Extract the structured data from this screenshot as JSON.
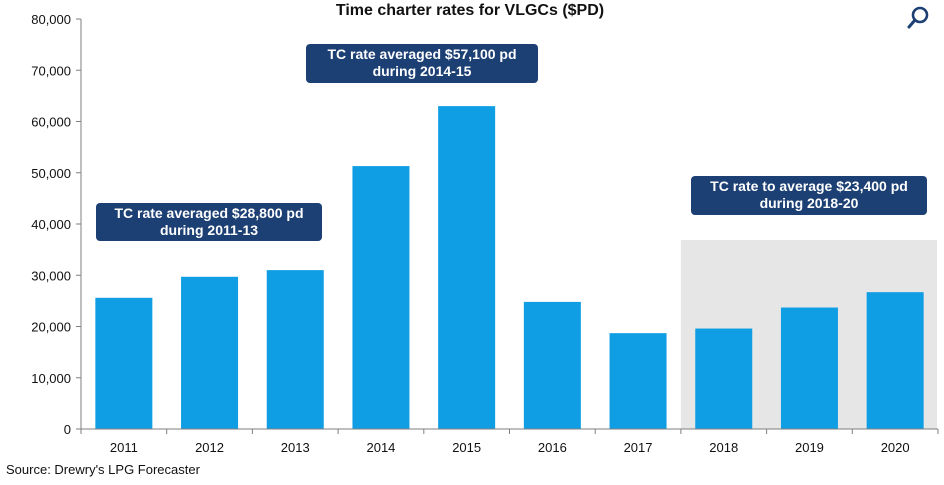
{
  "chart_data": {
    "type": "bar",
    "title": "Time charter rates for VLGCs ($PD)",
    "categories": [
      "2011",
      "2012",
      "2013",
      "2014",
      "2015",
      "2016",
      "2017",
      "2018",
      "2019",
      "2020"
    ],
    "values": [
      25600,
      29700,
      31000,
      51300,
      63000,
      24800,
      18700,
      19600,
      23700,
      26700
    ],
    "ylim": [
      0,
      80000
    ],
    "yticks": [
      "0",
      "10,000",
      "20,000",
      "30,000",
      "40,000",
      "50,000",
      "60,000",
      "70,000",
      "80,000"
    ],
    "grid": false,
    "bar_color": "#0f9de3",
    "forecast_shading": {
      "from": "2018",
      "to": "2020",
      "color": "#e6e6e6"
    },
    "annotations": [
      {
        "line1": "TC rate averaged $28,800 pd",
        "line2": "during  2011-13"
      },
      {
        "line1": "TC rate averaged  $57,100 pd",
        "line2": "during  2014-15"
      },
      {
        "line1": "TC rate to average $23,400 pd",
        "line2": "during  2018-20"
      }
    ]
  },
  "callout_color": "#1c3f74",
  "source": "Source: Drewry's LPG Forecaster",
  "search_icon": "search-icon"
}
